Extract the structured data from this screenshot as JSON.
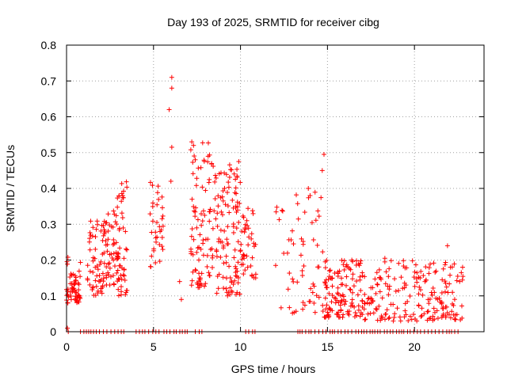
{
  "chart_data": {
    "type": "scatter",
    "title": "Day 193 of 2025, SRMTID for receiver cibg",
    "xlabel": "GPS time / hours",
    "ylabel": "SRMTID / TECUs",
    "xlim": [
      0,
      24
    ],
    "ylim": [
      0,
      0.8
    ],
    "xticks": [
      0,
      5,
      10,
      15,
      20
    ],
    "xtick_labels": [
      "0",
      "5",
      "10",
      "15",
      "20"
    ],
    "yticks": [
      0,
      0.1,
      0.2,
      0.3,
      0.4,
      0.5,
      0.6,
      0.7,
      0.8
    ],
    "ytick_labels": [
      "0",
      "0.1",
      "0.2",
      "0.3",
      "0.4",
      "0.5",
      "0.6",
      "0.7",
      "0.8"
    ],
    "grid": true,
    "marker": "+",
    "color": "#ff0000",
    "series": [
      {
        "name": "SRMTID",
        "clusters": [
          {
            "x_range": [
              0.0,
              0.8
            ],
            "y_range": [
              0.08,
              0.21
            ],
            "n": 60
          },
          {
            "x_range": [
              1.2,
              2.2
            ],
            "y_range": [
              0.1,
              0.31
            ],
            "n": 60
          },
          {
            "x_range": [
              2.2,
              3.0
            ],
            "y_range": [
              0.13,
              0.34
            ],
            "n": 55
          },
          {
            "x_range": [
              2.9,
              3.5
            ],
            "y_range": [
              0.1,
              0.42
            ],
            "n": 45
          },
          {
            "x_range": [
              4.8,
              5.6
            ],
            "y_range": [
              0.18,
              0.42
            ],
            "n": 35
          },
          {
            "x_range": [
              7.1,
              8.5
            ],
            "y_range": [
              0.12,
              0.53
            ],
            "n": 90
          },
          {
            "x_range": [
              8.5,
              10.0
            ],
            "y_range": [
              0.1,
              0.47
            ],
            "n": 110
          },
          {
            "x_range": [
              10.0,
              10.9
            ],
            "y_range": [
              0.15,
              0.35
            ],
            "n": 40
          },
          {
            "x_range": [
              12.0,
              14.8
            ],
            "y_range": [
              0.05,
              0.4
            ],
            "n": 60
          },
          {
            "x_range": [
              14.8,
              17.0
            ],
            "y_range": [
              0.04,
              0.2
            ],
            "n": 120
          },
          {
            "x_range": [
              17.0,
              22.8
            ],
            "y_range": [
              0.03,
              0.2
            ],
            "n": 200
          }
        ],
        "extra_points": [
          [
            0.05,
            0.01
          ],
          [
            6.05,
            0.71
          ],
          [
            6.05,
            0.68
          ],
          [
            5.9,
            0.62
          ],
          [
            6.05,
            0.515
          ],
          [
            6.0,
            0.42
          ],
          [
            6.5,
            0.14
          ],
          [
            6.6,
            0.09
          ],
          [
            7.2,
            0.53
          ],
          [
            7.3,
            0.52
          ],
          [
            7.4,
            0.48
          ],
          [
            9.9,
            0.475
          ],
          [
            14.8,
            0.495
          ],
          [
            14.7,
            0.45
          ],
          [
            13.9,
            0.4
          ],
          [
            14.0,
            0.38
          ],
          [
            21.9,
            0.24
          ],
          [
            18.3,
            0.205
          ],
          [
            16.4,
            0.2
          ],
          [
            22.6,
            0.14
          ]
        ],
        "zero_ranges": [
          [
            0.1,
            0.3
          ],
          [
            0.8,
            3.4
          ],
          [
            4.0,
            5.4
          ],
          [
            5.6,
            7.0
          ],
          [
            7.4,
            7.8
          ],
          [
            10.3,
            10.9
          ],
          [
            13.3,
            22.7
          ]
        ]
      }
    ]
  }
}
